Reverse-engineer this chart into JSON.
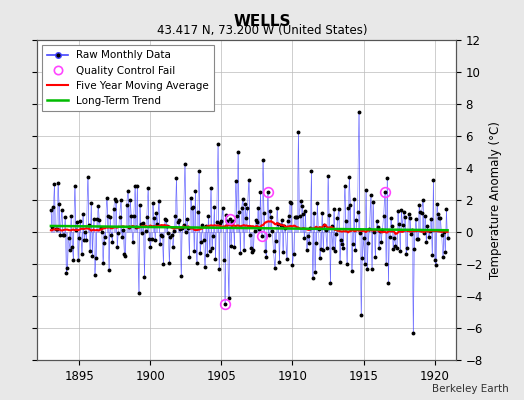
{
  "title": "WELLS",
  "subtitle": "43.417 N, 73.200 W (United States)",
  "ylabel": "Temperature Anomaly (°C)",
  "xlabel_note": "Berkeley Earth",
  "xlim": [
    1892.0,
    1921.5
  ],
  "ylim": [
    -8,
    12
  ],
  "yticks": [
    -8,
    -6,
    -4,
    -2,
    0,
    2,
    4,
    6,
    8,
    10,
    12
  ],
  "xticks": [
    1895,
    1900,
    1905,
    1910,
    1915,
    1920
  ],
  "background_color": "#e8e8e8",
  "plot_bg_color": "#ffffff",
  "grid_color": "#bbbbbb",
  "line_color_raw": "#4444ff",
  "line_color_moving_avg": "#ff0000",
  "line_color_trend": "#00bb00",
  "marker_color": "#000000",
  "qc_fail_color": "#ff44ff",
  "legend_entries": [
    "Raw Monthly Data",
    "Quality Control Fail",
    "Five Year Moving Average",
    "Long-Term Trend"
  ],
  "years_start": 1893,
  "years_end": 1921,
  "seed": 42,
  "noise_std": 1.6,
  "trend_slope": -0.025,
  "trend_intercept": 0.55
}
